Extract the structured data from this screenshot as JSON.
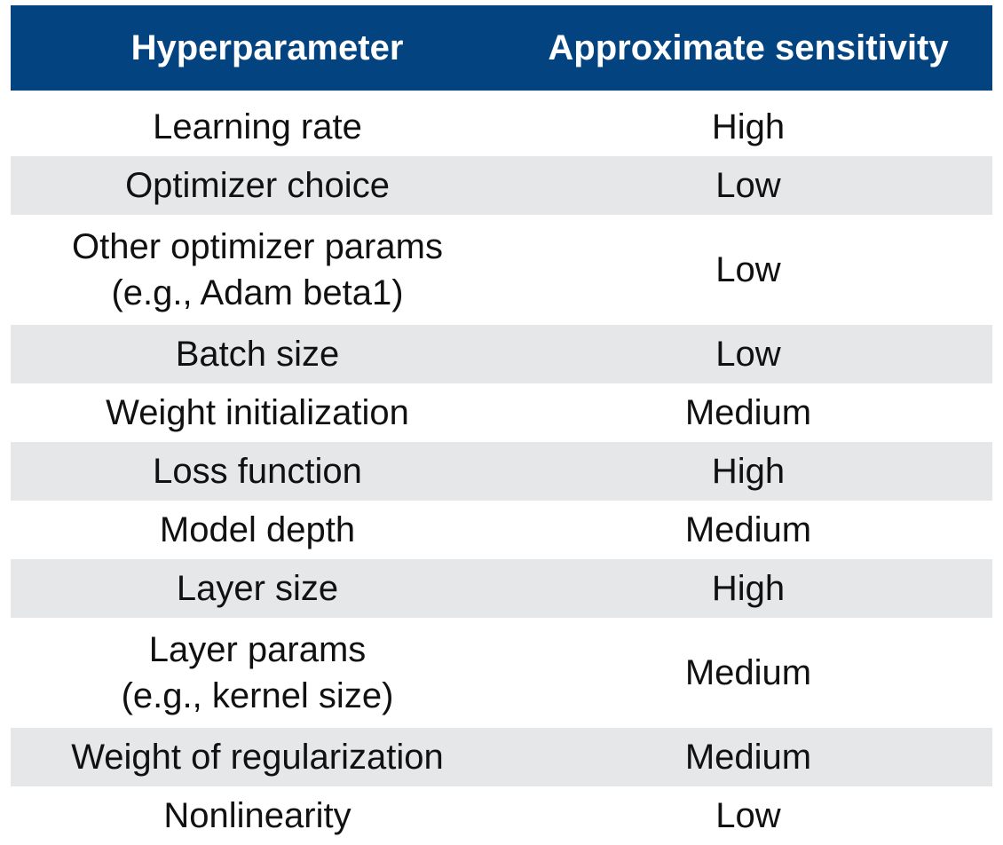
{
  "table": {
    "headers": [
      "Hyperparameter",
      "Approximate sensitivity"
    ],
    "rows": [
      {
        "param": "Learning rate",
        "sensitivity": "High"
      },
      {
        "param": "Optimizer choice",
        "sensitivity": "Low"
      },
      {
        "param": "Other optimizer params\n(e.g., Adam beta1)",
        "sensitivity": "Low"
      },
      {
        "param": "Batch size",
        "sensitivity": "Low"
      },
      {
        "param": "Weight initialization",
        "sensitivity": "Medium"
      },
      {
        "param": "Loss function",
        "sensitivity": "High"
      },
      {
        "param": "Model depth",
        "sensitivity": "Medium"
      },
      {
        "param": "Layer size",
        "sensitivity": "High"
      },
      {
        "param": "Layer params\n(e.g., kernel size)",
        "sensitivity": "Medium"
      },
      {
        "param": "Weight of regularization",
        "sensitivity": "Medium"
      },
      {
        "param": "Nonlinearity",
        "sensitivity": "Low"
      }
    ]
  },
  "colors": {
    "header_bg": "#034380",
    "header_text": "#ffffff",
    "stripe_bg": "#e6e7e9"
  }
}
